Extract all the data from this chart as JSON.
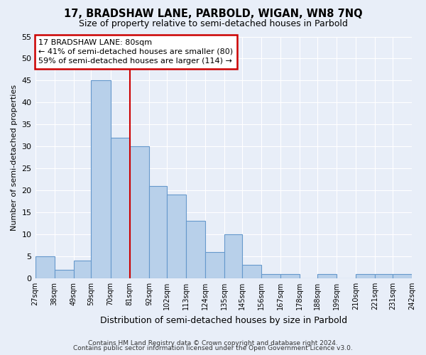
{
  "title": "17, BRADSHAW LANE, PARBOLD, WIGAN, WN8 7NQ",
  "subtitle": "Size of property relative to semi-detached houses in Parbold",
  "xlabel": "Distribution of semi-detached houses by size in Parbold",
  "ylabel": "Number of semi-detached properties",
  "bin_edges": [
    27,
    38,
    49,
    59,
    70,
    81,
    92,
    102,
    113,
    124,
    135,
    145,
    156,
    167,
    178,
    188,
    199,
    210,
    221,
    231,
    242
  ],
  "bin_labels": [
    "27sqm",
    "38sqm",
    "49sqm",
    "59sqm",
    "70sqm",
    "81sqm",
    "92sqm",
    "102sqm",
    "113sqm",
    "124sqm",
    "135sqm",
    "145sqm",
    "156sqm",
    "167sqm",
    "178sqm",
    "188sqm",
    "199sqm",
    "210sqm",
    "221sqm",
    "231sqm",
    "242sqm"
  ],
  "counts": [
    5,
    2,
    4,
    45,
    32,
    30,
    21,
    19,
    13,
    6,
    10,
    3,
    1,
    1,
    0,
    1,
    0,
    1,
    1,
    1
  ],
  "bar_color": "#b8d0ea",
  "bar_edge_color": "#6699cc",
  "marker_value": 81,
  "marker_color": "#cc0000",
  "ylim": [
    0,
    55
  ],
  "yticks": [
    0,
    5,
    10,
    15,
    20,
    25,
    30,
    35,
    40,
    45,
    50,
    55
  ],
  "annotation_title": "17 BRADSHAW LANE: 80sqm",
  "annotation_line1": "← 41% of semi-detached houses are smaller (80)",
  "annotation_line2": "59% of semi-detached houses are larger (114) →",
  "annotation_box_color": "#ffffff",
  "annotation_box_edge": "#cc0000",
  "bg_color": "#e8eef8",
  "grid_color": "#ffffff",
  "footer1": "Contains HM Land Registry data © Crown copyright and database right 2024.",
  "footer2": "Contains public sector information licensed under the Open Government Licence v3.0."
}
